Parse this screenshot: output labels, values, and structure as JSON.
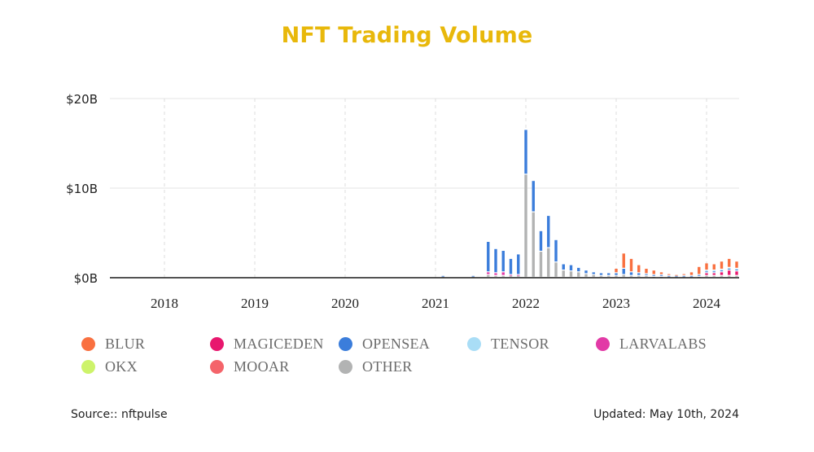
{
  "colors": {
    "title": "#e8b80b",
    "BLUR": "#f97040",
    "MAGICEDEN": "#e8176e",
    "OPENSEA": "#3b7ddb",
    "TENSOR": "#a9ddf6",
    "LARVALABS": "#e23aa6",
    "OKX": "#cdf36a",
    "MOOAR": "#f4646a",
    "OTHER": "#b2b3b3"
  },
  "footer": {
    "source": "Source:: nftpulse",
    "updated": "Updated: May 10th, 2024"
  },
  "chart_data": {
    "type": "bar",
    "stacked": true,
    "title": "NFT Trading Volume",
    "xlabel": "",
    "ylabel": "",
    "x_ticks": [
      "2018",
      "2019",
      "2020",
      "2021",
      "2022",
      "2023",
      "2024"
    ],
    "y_ticks": [
      "$0B",
      "$10B",
      "$20B"
    ],
    "ylim": [
      0,
      20
    ],
    "unit": "billion USD",
    "grid": true,
    "legend_position": "bottom",
    "legend": [
      "BLUR",
      "MAGICEDEN",
      "OPENSEA",
      "TENSOR",
      "LARVALABS",
      "OKX",
      "MOOAR",
      "OTHER"
    ],
    "categories": [
      "2021-02",
      "2021-06",
      "2021-08",
      "2021-09",
      "2021-10",
      "2021-11",
      "2021-12",
      "2022-01",
      "2022-02",
      "2022-03",
      "2022-04",
      "2022-05",
      "2022-06",
      "2022-07",
      "2022-08",
      "2022-09",
      "2022-10",
      "2022-11",
      "2022-12",
      "2023-01",
      "2023-02",
      "2023-03",
      "2023-04",
      "2023-05",
      "2023-06",
      "2023-07",
      "2023-08",
      "2023-09",
      "2023-10",
      "2023-11",
      "2023-12",
      "2024-01",
      "2024-02",
      "2024-03",
      "2024-04",
      "2024-05"
    ],
    "series": [
      {
        "name": "OTHER",
        "values": [
          0.1,
          0.1,
          0.3,
          0.2,
          0.2,
          0.2,
          0.2,
          11.5,
          7.3,
          2.9,
          3.3,
          1.7,
          0.8,
          0.7,
          0.6,
          0.4,
          0.3,
          0.2,
          0.2,
          0.2,
          0.3,
          0.2,
          0.2,
          0.2,
          0.1,
          0.1,
          0.1,
          0.1,
          0.1,
          0.1,
          0.1,
          0.2,
          0.2,
          0.2,
          0.2,
          0.2
        ]
      },
      {
        "name": "LARVALABS",
        "values": [
          0,
          0,
          0.3,
          0.3,
          0.4,
          0.1,
          0.1,
          0,
          0,
          0,
          0,
          0,
          0,
          0,
          0,
          0,
          0,
          0,
          0,
          0,
          0,
          0,
          0,
          0,
          0,
          0,
          0,
          0,
          0,
          0,
          0,
          0,
          0,
          0,
          0,
          0
        ]
      },
      {
        "name": "MAGICEDEN",
        "values": [
          0,
          0,
          0,
          0,
          0,
          0,
          0,
          0,
          0,
          0,
          0,
          0,
          0,
          0,
          0,
          0,
          0,
          0,
          0,
          0,
          0,
          0,
          0,
          0,
          0,
          0,
          0,
          0,
          0,
          0,
          0,
          0.3,
          0.3,
          0.4,
          0.6,
          0.5
        ]
      },
      {
        "name": "OPENSEA",
        "values": [
          0.1,
          0.1,
          3.4,
          2.7,
          2.4,
          1.8,
          2.3,
          5.0,
          3.5,
          2.3,
          3.6,
          2.5,
          0.7,
          0.7,
          0.5,
          0.4,
          0.3,
          0.3,
          0.3,
          0.3,
          0.7,
          0.4,
          0.3,
          0.2,
          0.2,
          0.2,
          0.1,
          0.1,
          0.1,
          0.1,
          0.2,
          0.2,
          0.2,
          0.2,
          0.2,
          0.2
        ]
      },
      {
        "name": "TENSOR",
        "values": [
          0,
          0,
          0,
          0,
          0,
          0,
          0,
          0,
          0,
          0,
          0,
          0,
          0,
          0,
          0,
          0,
          0,
          0,
          0,
          0,
          0,
          0,
          0,
          0,
          0,
          0,
          0,
          0,
          0,
          0,
          0,
          0.1,
          0.1,
          0.1,
          0.1,
          0.1
        ]
      },
      {
        "name": "OKX",
        "values": [
          0,
          0,
          0,
          0,
          0,
          0,
          0,
          0,
          0,
          0,
          0,
          0,
          0,
          0,
          0,
          0,
          0,
          0,
          0,
          0,
          0,
          0,
          0,
          0,
          0,
          0,
          0,
          0,
          0,
          0,
          0,
          0,
          0,
          0,
          0,
          0
        ]
      },
      {
        "name": "MOOAR",
        "values": [
          0,
          0,
          0,
          0,
          0,
          0,
          0,
          0,
          0,
          0,
          0,
          0,
          0,
          0,
          0,
          0,
          0,
          0,
          0,
          0,
          0,
          0,
          0,
          0,
          0,
          0,
          0,
          0,
          0,
          0,
          0,
          0,
          0,
          0,
          0,
          0
        ]
      },
      {
        "name": "BLUR",
        "values": [
          0,
          0,
          0,
          0,
          0,
          0,
          0,
          0,
          0,
          0,
          0,
          0,
          0,
          0,
          0,
          0,
          0,
          0,
          0,
          0.5,
          1.7,
          1.5,
          0.9,
          0.6,
          0.5,
          0.3,
          0.2,
          0.1,
          0.2,
          0.4,
          0.9,
          0.8,
          0.7,
          0.9,
          1.0,
          0.8
        ]
      }
    ]
  }
}
